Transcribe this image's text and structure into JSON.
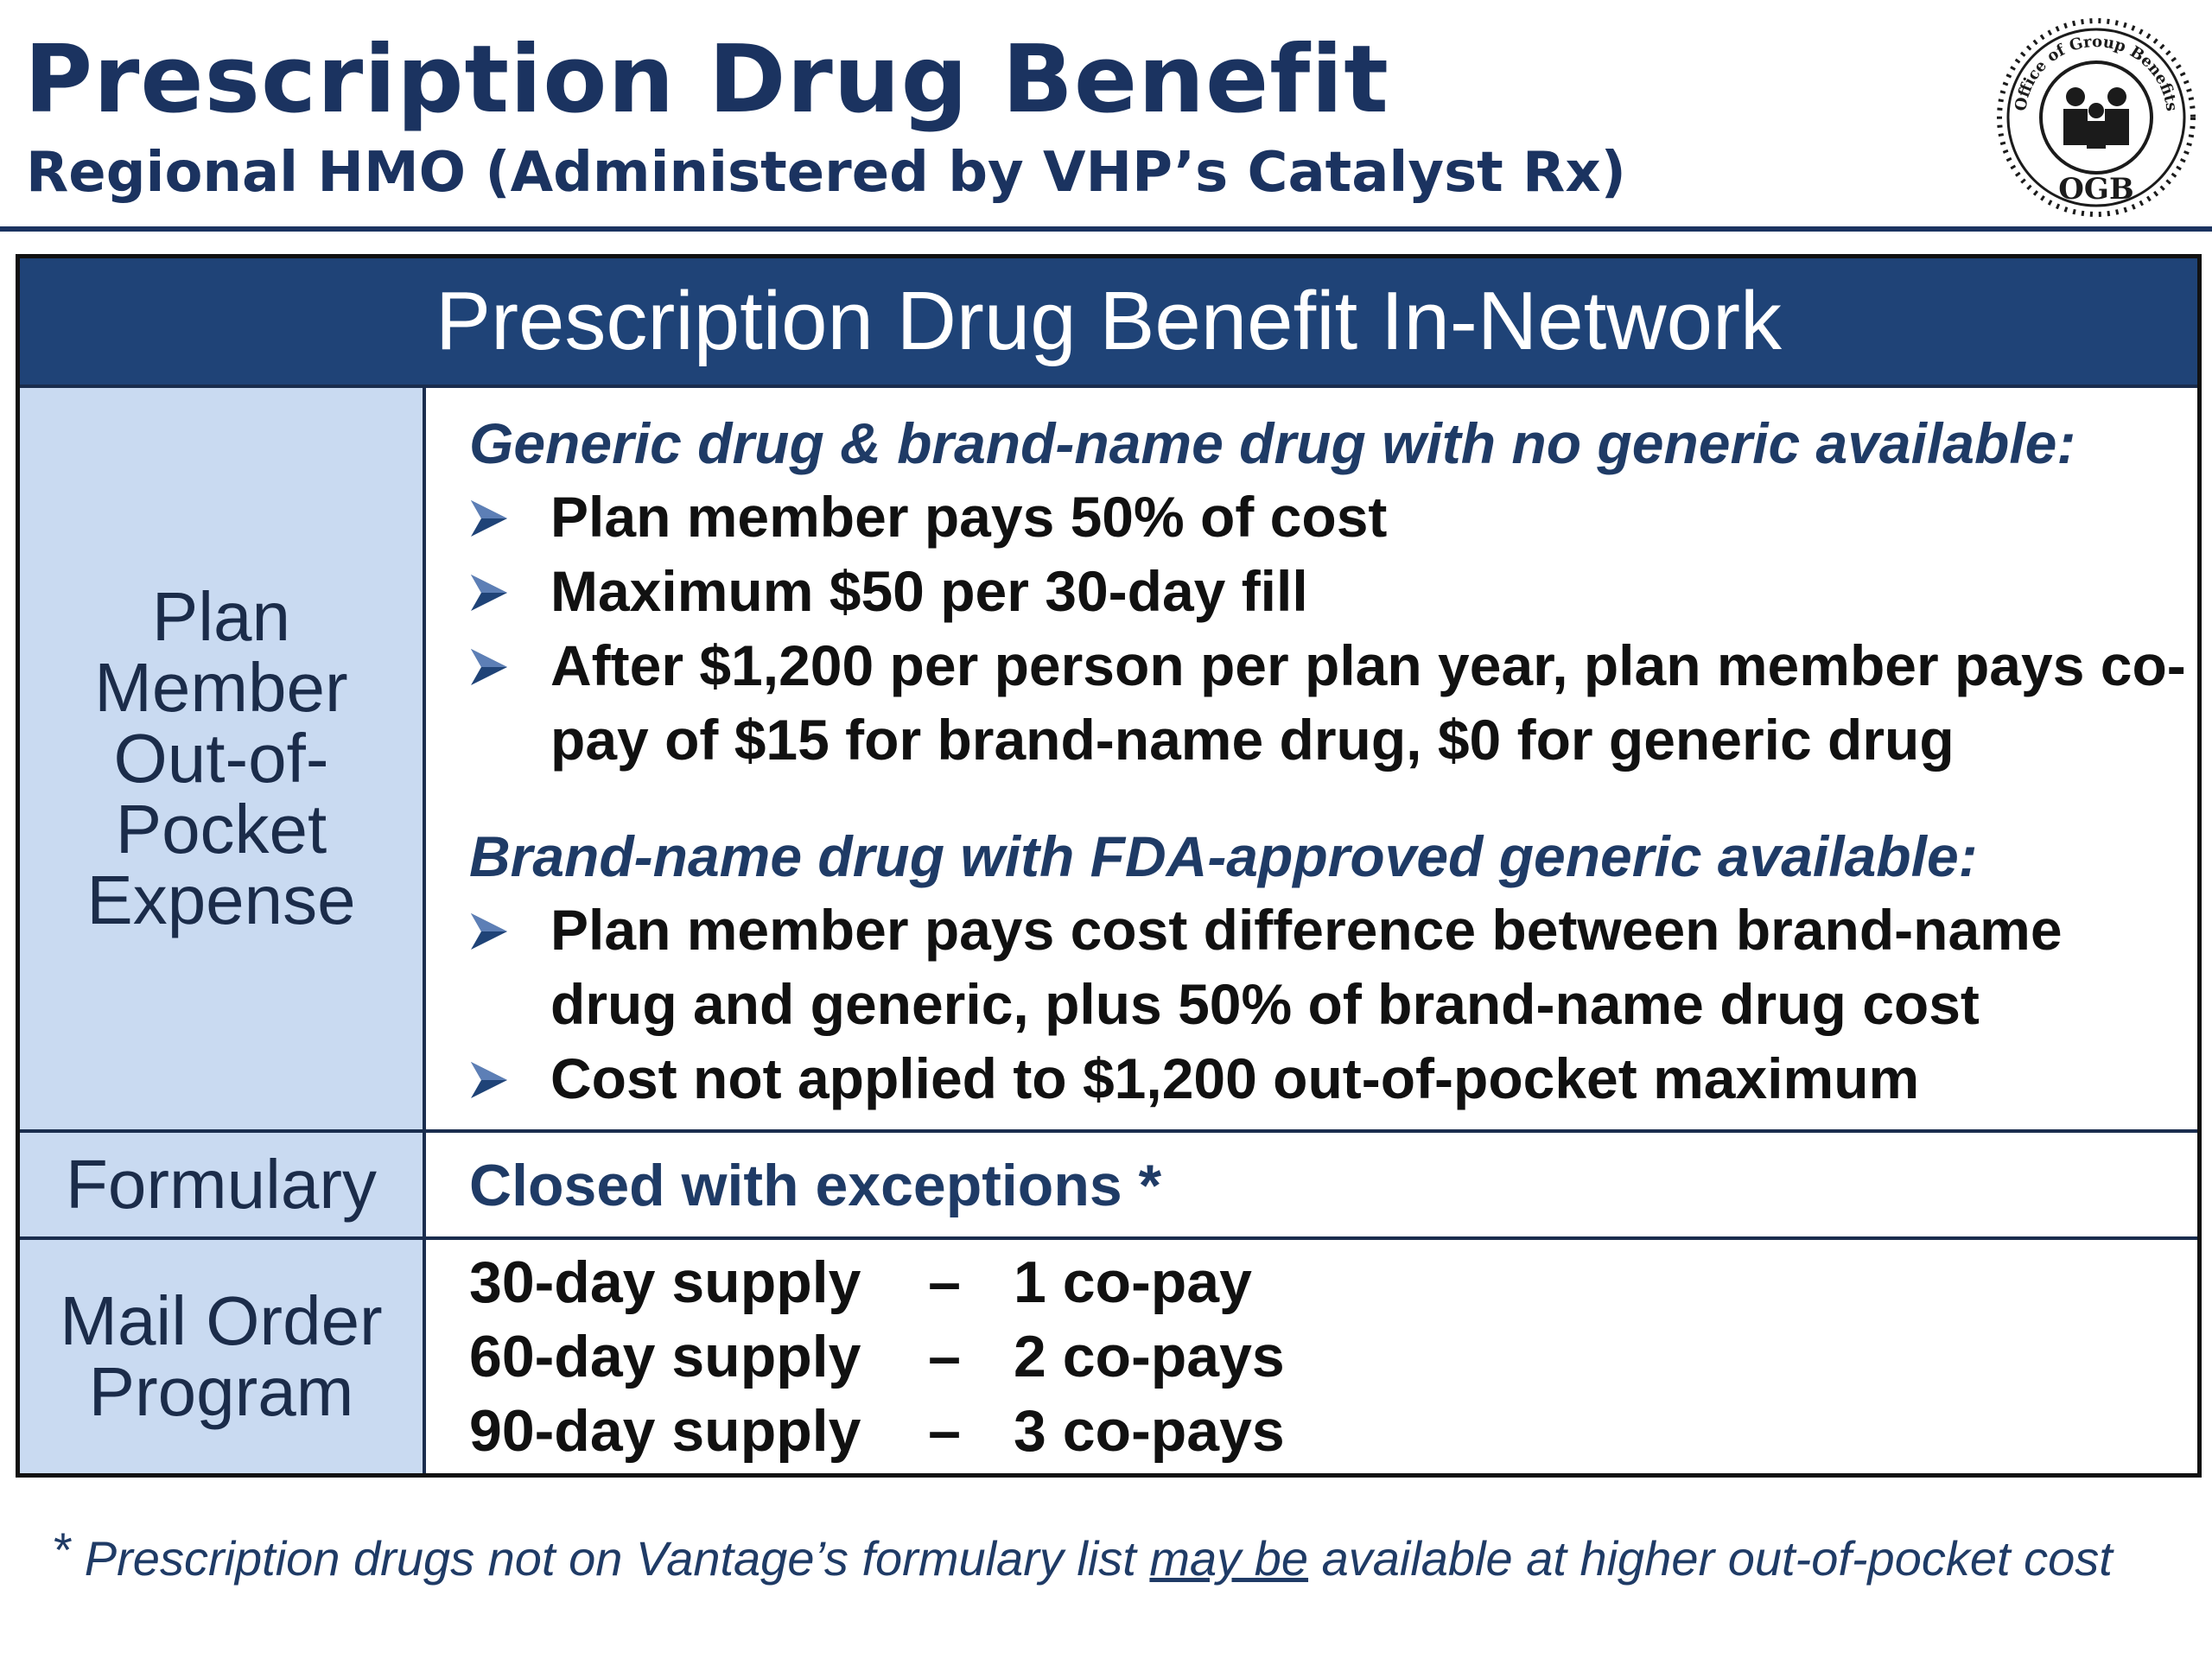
{
  "header": {
    "title": "Prescription Drug Benefit",
    "subtitle": "Regional HMO (Administered by VHP’s Catalyst Rx)",
    "logo": {
      "top_text": "Office of Group Benefits",
      "bottom_text": "OGB",
      "icon": "family-seal-icon"
    }
  },
  "table": {
    "heading": "Prescription Drug Benefit In-Network",
    "rows": {
      "out_of_pocket": {
        "label": "Plan\nMember\nOut-of-\nPocket\nExpense",
        "section_1": {
          "heading": "Generic drug & brand-name drug with no generic available:",
          "bullets": [
            "Plan member pays 50% of cost",
            "Maximum $50 per 30-day fill",
            "After $1,200 per person per plan year, plan member pays co-pay of $15 for brand-name drug, $0 for generic drug"
          ]
        },
        "section_2": {
          "heading": "Brand-name drug with FDA-approved generic available:",
          "bullets": [
            "Plan member pays cost difference between brand-name drug and generic, plus 50% of brand-name drug cost",
            "Cost not applied to $1,200 out-of-pocket maximum"
          ]
        }
      },
      "formulary": {
        "label": "Formulary",
        "value": "Closed with exceptions *"
      },
      "mail_order": {
        "label": "Mail Order\nProgram",
        "lines": [
          {
            "supply": "30-day supply",
            "dash": "–",
            "copay": "1 co-pay"
          },
          {
            "supply": "60-day supply",
            "dash": "–",
            "copay": "2 co-pays"
          },
          {
            "supply": "90-day supply",
            "dash": "–",
            "copay": "3 co-pays"
          }
        ]
      }
    }
  },
  "footnote": {
    "star": "*",
    "text_before": "Prescription drugs not on Vantage’s formulary list ",
    "underlined": "may be",
    "text_after": " available at higher out-of-pocket cost"
  },
  "colors": {
    "navy": "#1b3360",
    "header_band": "#1f4377",
    "label_fill": "#c9daf1",
    "arrow": "#1f4377"
  }
}
